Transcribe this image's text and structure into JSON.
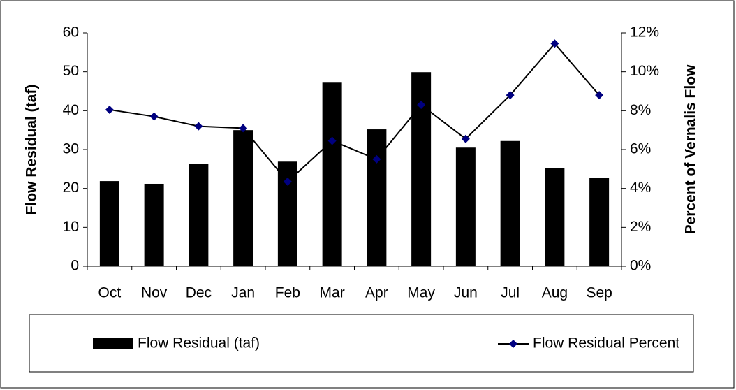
{
  "chart_data": {
    "type": "bar",
    "categories": [
      "Oct",
      "Nov",
      "Dec",
      "Jan",
      "Feb",
      "Mar",
      "Apr",
      "May",
      "Jun",
      "Jul",
      "Aug",
      "Sep"
    ],
    "series": [
      {
        "name": "Flow Residual (taf)",
        "type": "bar",
        "color": "#000000",
        "values": [
          21.9,
          21.2,
          26.4,
          35.0,
          26.9,
          47.2,
          35.2,
          49.9,
          30.5,
          32.2,
          25.3,
          22.8
        ]
      },
      {
        "name": "Flow Residual Percent",
        "type": "line",
        "axis": "y2",
        "color": "#000080",
        "values": [
          8.05,
          7.7,
          7.2,
          7.1,
          4.35,
          6.45,
          5.5,
          8.3,
          6.55,
          8.8,
          11.45,
          8.8
        ]
      }
    ],
    "ylabel": "Flow Residual (taf)",
    "y2label": "Percent of Vernalis Flow",
    "ylim": [
      0,
      60
    ],
    "yticks": [
      0,
      10,
      20,
      30,
      40,
      50,
      60
    ],
    "y2lim": [
      0,
      12
    ],
    "y2ticks": [
      {
        "value": 0,
        "label": "0%"
      },
      {
        "value": 2,
        "label": "2%"
      },
      {
        "value": 4,
        "label": "4%"
      },
      {
        "value": 6,
        "label": "6%"
      },
      {
        "value": 8,
        "label": "8%"
      },
      {
        "value": 10,
        "label": "10%"
      },
      {
        "value": 12,
        "label": "12%"
      }
    ],
    "grid": false
  }
}
